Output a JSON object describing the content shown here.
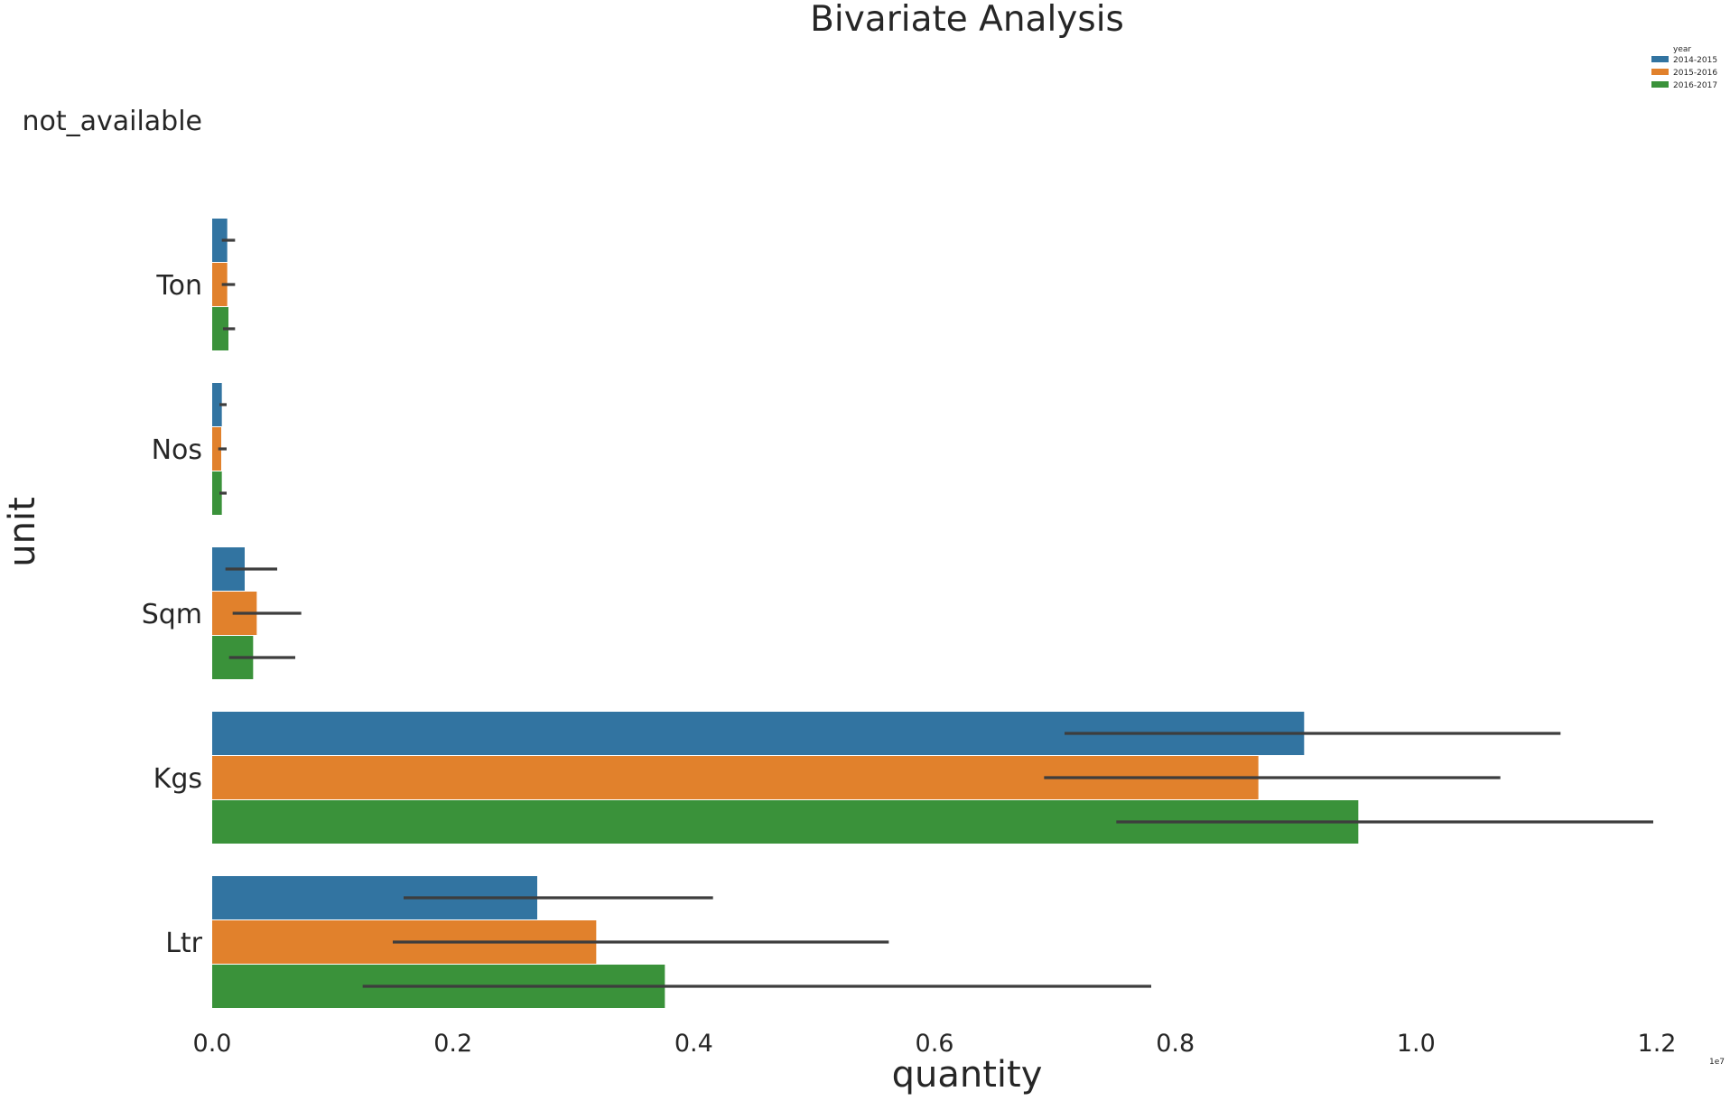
{
  "chart_data": {
    "type": "bar",
    "orientation": "horizontal",
    "title": "Bivariate Analysis",
    "xlabel": "quantity",
    "ylabel": "unit",
    "x_offset_label": "1e7",
    "xlim": [
      0,
      1.2
    ],
    "x_ticks": [
      "0.0",
      "0.2",
      "0.4",
      "0.6",
      "0.8",
      "1.0",
      "1.2"
    ],
    "categories": [
      "not_available",
      "Ton",
      "Nos",
      "Sqm",
      "Kgs",
      "Ltr"
    ],
    "grid": false,
    "legend": {
      "title": "year",
      "position": "top-right"
    },
    "series": [
      {
        "name": "2014-2015",
        "color": "#3274a1",
        "values": [
          0,
          0.0125,
          0.008,
          0.027,
          0.907,
          0.27
        ],
        "error_low": [
          0,
          0.008,
          0.006,
          0.011,
          0.708,
          0.159
        ],
        "error_high": [
          0,
          0.019,
          0.012,
          0.054,
          1.12,
          0.416
        ]
      },
      {
        "name": "2015-2016",
        "color": "#e1812c",
        "values": [
          0,
          0.0125,
          0.0075,
          0.037,
          0.869,
          0.319
        ],
        "error_low": [
          0,
          0.008,
          0.005,
          0.017,
          0.691,
          0.15
        ],
        "error_high": [
          0,
          0.019,
          0.012,
          0.074,
          1.07,
          0.562
        ]
      },
      {
        "name": "2016-2017",
        "color": "#3a923a",
        "values": [
          0,
          0.0135,
          0.008,
          0.034,
          0.952,
          0.376
        ],
        "error_low": [
          0,
          0.009,
          0.006,
          0.014,
          0.751,
          0.125
        ],
        "error_high": [
          0,
          0.019,
          0.012,
          0.069,
          1.197,
          0.78
        ]
      }
    ]
  }
}
